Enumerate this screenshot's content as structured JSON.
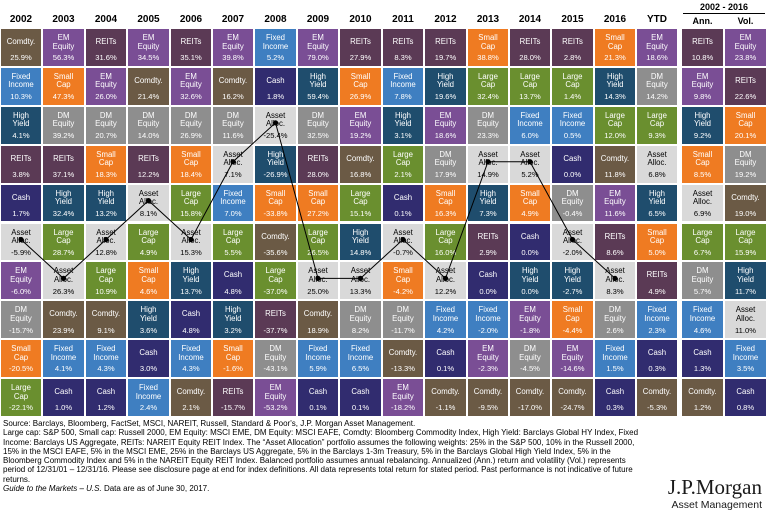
{
  "headers": {
    "years": [
      "2002",
      "2003",
      "2004",
      "2005",
      "2006",
      "2007",
      "2008",
      "2009",
      "2010",
      "2011",
      "2012",
      "2013",
      "2014",
      "2015",
      "2016",
      "YTD"
    ],
    "range_label": "2002 - 2016",
    "ann_label": "Ann.",
    "vol_label": "Vol."
  },
  "colors": {
    "REITs": "#5b3a55",
    "Comdty.": "#6b5a45",
    "EM Equity": "#7a4e95",
    "Fixed Income": "#3f7fc1",
    "Small Cap": "#ef7b22",
    "DM Equity": "#8e8e8e",
    "High Yield": "#1f4d6d",
    "Large Cap": "#6a8f2f",
    "Asset Alloc.": "#d9d9d9",
    "Cash": "#312c6f"
  },
  "chart_data": {
    "type": "table",
    "columns": [
      "2002",
      "2003",
      "2004",
      "2005",
      "2006",
      "2007",
      "2008",
      "2009",
      "2010",
      "2011",
      "2012",
      "2013",
      "2014",
      "2015",
      "2016",
      "YTD",
      "Ann.",
      "Vol."
    ],
    "rows": [
      [
        [
          "Comdty.",
          "25.9%"
        ],
        [
          "EM Equity",
          "56.3%"
        ],
        [
          "REITs",
          "31.6%"
        ],
        [
          "EM Equity",
          "34.5%"
        ],
        [
          "REITs",
          "35.1%"
        ],
        [
          "EM Equity",
          "39.8%"
        ],
        [
          "Fixed Income",
          "5.2%"
        ],
        [
          "EM Equity",
          "79.0%"
        ],
        [
          "REITs",
          "27.9%"
        ],
        [
          "REITs",
          "8.3%"
        ],
        [
          "REITs",
          "19.7%"
        ],
        [
          "Small Cap",
          "38.8%"
        ],
        [
          "REITs",
          "28.0%"
        ],
        [
          "REITs",
          "2.8%"
        ],
        [
          "Small Cap",
          "21.3%"
        ],
        [
          "EM Equity",
          "18.6%"
        ],
        [
          "REITs",
          "10.8%"
        ],
        [
          "EM Equity",
          "23.8%"
        ]
      ],
      [
        [
          "Fixed Income",
          "10.3%"
        ],
        [
          "Small Cap",
          "47.3%"
        ],
        [
          "EM Equity",
          "26.0%"
        ],
        [
          "Comdty.",
          "21.4%"
        ],
        [
          "EM Equity",
          "32.6%"
        ],
        [
          "Comdty.",
          "16.2%"
        ],
        [
          "Cash",
          "1.8%"
        ],
        [
          "High Yield",
          "59.4%"
        ],
        [
          "Small Cap",
          "26.9%"
        ],
        [
          "Fixed Income",
          "7.8%"
        ],
        [
          "High Yield",
          "19.6%"
        ],
        [
          "Large Cap",
          "32.4%"
        ],
        [
          "Large Cap",
          "13.7%"
        ],
        [
          "Large Cap",
          "1.4%"
        ],
        [
          "High Yield",
          "14.3%"
        ],
        [
          "DM Equity",
          "14.2%"
        ],
        [
          "EM Equity",
          "9.8%"
        ],
        [
          "REITs",
          "22.6%"
        ]
      ],
      [
        [
          "High Yield",
          "4.1%"
        ],
        [
          "DM Equity",
          "39.2%"
        ],
        [
          "DM Equity",
          "20.7%"
        ],
        [
          "DM Equity",
          "14.0%"
        ],
        [
          "DM Equity",
          "26.9%"
        ],
        [
          "DM Equity",
          "11.6%"
        ],
        [
          "Asset Alloc.",
          "-25.4%"
        ],
        [
          "DM Equity",
          "32.5%"
        ],
        [
          "EM Equity",
          "19.2%"
        ],
        [
          "High Yield",
          "3.1%"
        ],
        [
          "EM Equity",
          "18.6%"
        ],
        [
          "DM Equity",
          "23.3%"
        ],
        [
          "Fixed Income",
          "6.0%"
        ],
        [
          "Fixed Income",
          "0.5%"
        ],
        [
          "Large Cap",
          "12.0%"
        ],
        [
          "Large Cap",
          "9.3%"
        ],
        [
          "High Yield",
          "9.2%"
        ],
        [
          "Small Cap",
          "20.1%"
        ]
      ],
      [
        [
          "REITs",
          "3.8%"
        ],
        [
          "REITs",
          "37.1%"
        ],
        [
          "Small Cap",
          "18.3%"
        ],
        [
          "REITs",
          "12.2%"
        ],
        [
          "Small Cap",
          "18.4%"
        ],
        [
          "Asset Alloc.",
          "7.1%"
        ],
        [
          "High Yield",
          "-26.9%"
        ],
        [
          "REITs",
          "28.0%"
        ],
        [
          "Comdty.",
          "16.8%"
        ],
        [
          "Large Cap",
          "2.1%"
        ],
        [
          "DM Equity",
          "17.9%"
        ],
        [
          "Asset Alloc.",
          "14.9%"
        ],
        [
          "Asset Alloc.",
          "5.2%"
        ],
        [
          "Cash",
          "0.0%"
        ],
        [
          "Comdty.",
          "11.8%"
        ],
        [
          "Asset Alloc.",
          "6.8%"
        ],
        [
          "Small Cap",
          "8.5%"
        ],
        [
          "DM Equity",
          "19.2%"
        ]
      ],
      [
        [
          "Cash",
          "1.7%"
        ],
        [
          "High Yield",
          "32.4%"
        ],
        [
          "High Yield",
          "13.2%"
        ],
        [
          "Asset Alloc.",
          "8.1%"
        ],
        [
          "Large Cap",
          "15.8%"
        ],
        [
          "Fixed Income",
          "7.0%"
        ],
        [
          "Small Cap",
          "-33.8%"
        ],
        [
          "Small Cap",
          "27.2%"
        ],
        [
          "Large Cap",
          "15.1%"
        ],
        [
          "Cash",
          "0.1%"
        ],
        [
          "Small Cap",
          "16.3%"
        ],
        [
          "High Yield",
          "7.3%"
        ],
        [
          "Small Cap",
          "4.9%"
        ],
        [
          "DM Equity",
          "-0.4%"
        ],
        [
          "EM Equity",
          "11.6%"
        ],
        [
          "High Yield",
          "6.5%"
        ],
        [
          "Asset Alloc.",
          "6.9%"
        ],
        [
          "Comdty.",
          "19.0%"
        ]
      ],
      [
        [
          "Asset Alloc.",
          "-5.9%"
        ],
        [
          "Large Cap",
          "28.7%"
        ],
        [
          "Asset Alloc.",
          "12.8%"
        ],
        [
          "Large Cap",
          "4.9%"
        ],
        [
          "Asset Alloc.",
          "15.3%"
        ],
        [
          "Large Cap",
          "5.5%"
        ],
        [
          "Comdty.",
          "-35.6%"
        ],
        [
          "Large Cap",
          "26.5%"
        ],
        [
          "High Yield",
          "14.8%"
        ],
        [
          "Asset Alloc.",
          "-0.7%"
        ],
        [
          "Large Cap",
          "16.0%"
        ],
        [
          "REITs",
          "2.9%"
        ],
        [
          "Cash",
          "0.0%"
        ],
        [
          "Asset Alloc.",
          "-2.0%"
        ],
        [
          "REITs",
          "8.6%"
        ],
        [
          "Small Cap",
          "5.0%"
        ],
        [
          "Large Cap",
          "6.7%"
        ],
        [
          "Large Cap",
          "15.9%"
        ]
      ],
      [
        [
          "EM Equity",
          "-6.0%"
        ],
        [
          "Asset Alloc.",
          "26.3%"
        ],
        [
          "Large Cap",
          "10.9%"
        ],
        [
          "Small Cap",
          "4.6%"
        ],
        [
          "High Yield",
          "13.7%"
        ],
        [
          "Cash",
          "4.8%"
        ],
        [
          "Large Cap",
          "-37.0%"
        ],
        [
          "Asset Alloc.",
          "25.0%"
        ],
        [
          "Asset Alloc.",
          "13.3%"
        ],
        [
          "Small Cap",
          "-4.2%"
        ],
        [
          "Asset Alloc.",
          "12.2%"
        ],
        [
          "Cash",
          "0.0%"
        ],
        [
          "High Yield",
          "0.0%"
        ],
        [
          "High Yield",
          "-2.7%"
        ],
        [
          "Asset Alloc.",
          "8.3%"
        ],
        [
          "REITs",
          "4.9%"
        ],
        [
          "DM Equity",
          "5.7%"
        ],
        [
          "High Yield",
          "11.7%"
        ]
      ],
      [
        [
          "DM Equity",
          "-15.7%"
        ],
        [
          "Comdty.",
          "23.9%"
        ],
        [
          "Comdty.",
          "9.1%"
        ],
        [
          "High Yield",
          "3.6%"
        ],
        [
          "Cash",
          "4.8%"
        ],
        [
          "High Yield",
          "3.2%"
        ],
        [
          "REITs",
          "-37.7%"
        ],
        [
          "Comdty.",
          "18.9%"
        ],
        [
          "DM Equity",
          "8.2%"
        ],
        [
          "DM Equity",
          "-11.7%"
        ],
        [
          "Fixed Income",
          "4.2%"
        ],
        [
          "Fixed Income",
          "-2.0%"
        ],
        [
          "EM Equity",
          "-1.8%"
        ],
        [
          "Small Cap",
          "-4.4%"
        ],
        [
          "DM Equity",
          "2.6%"
        ],
        [
          "Fixed Income",
          "2.3%"
        ],
        [
          "Fixed Income",
          "4.6%"
        ],
        [
          "Asset Alloc.",
          "11.0%"
        ]
      ],
      [
        [
          "Small Cap",
          "-20.5%"
        ],
        [
          "Fixed Income",
          "4.1%"
        ],
        [
          "Fixed Income",
          "4.3%"
        ],
        [
          "Cash",
          "3.0%"
        ],
        [
          "Fixed Income",
          "4.3%"
        ],
        [
          "Small Cap",
          "-1.6%"
        ],
        [
          "DM Equity",
          "-43.1%"
        ],
        [
          "Fixed Income",
          "5.9%"
        ],
        [
          "Fixed Income",
          "6.5%"
        ],
        [
          "Comdty.",
          "-13.3%"
        ],
        [
          "Cash",
          "0.1%"
        ],
        [
          "EM Equity",
          "-2.3%"
        ],
        [
          "DM Equity",
          "-4.5%"
        ],
        [
          "EM Equity",
          "-14.6%"
        ],
        [
          "Fixed Income",
          "1.5%"
        ],
        [
          "Cash",
          "0.3%"
        ],
        [
          "Cash",
          "1.3%"
        ],
        [
          "Fixed Income",
          "3.5%"
        ]
      ],
      [
        [
          "Large Cap",
          "-22.1%"
        ],
        [
          "Cash",
          "1.0%"
        ],
        [
          "Cash",
          "1.2%"
        ],
        [
          "Fixed Income",
          "2.4%"
        ],
        [
          "Comdty.",
          "2.1%"
        ],
        [
          "REITs",
          "-15.7%"
        ],
        [
          "EM Equity",
          "-53.2%"
        ],
        [
          "Cash",
          "0.1%"
        ],
        [
          "Cash",
          "0.1%"
        ],
        [
          "EM Equity",
          "-18.2%"
        ],
        [
          "Comdty.",
          "-1.1%"
        ],
        [
          "Comdty.",
          "-9.5%"
        ],
        [
          "Comdty.",
          "-17.0%"
        ],
        [
          "Comdty.",
          "-24.7%"
        ],
        [
          "Cash",
          "0.3%"
        ],
        [
          "Comdty.",
          "-5.3%"
        ],
        [
          "Comdty.",
          "1.2%"
        ],
        [
          "Cash",
          "0.8%"
        ]
      ]
    ],
    "asset_alloc_line_rows": [
      5,
      6,
      5,
      4,
      5,
      3,
      2,
      6,
      6,
      5,
      6,
      3,
      3,
      5,
      6
    ]
  },
  "footer": {
    "lines": [
      "Source: Barclays, Bloomberg, FactSet, MSCI, NAREIT, Russell, Standard & Poor's, J.P. Morgan Asset Management.",
      "Large cap: S&P 500, Small cap: Russell 2000, EM Equity: MSCI EME, DM Equity: MSCI EAFE, Comdty: Bloomberg Commodity Index, High Yield: Barclays Global HY Index, Fixed Income: Barclays US Aggregate, REITs: NAREIT Equity REIT Index. The “Asset Allocation” portfolio assumes the following weights: 25% in the S&P 500, 10% in the Russell 2000, 15% in the MSCI EAFE, 5% in the MSCI EME, 25% in the Barclays US Aggregate, 5% in the Barclays 1-3m Treasury, 5% in the Barclays Global High Yield Index, 5% in the Bloomberg Commodity Index and 5% in the NAREIT Equity REIT Index. Balanced portfolio assumes annual rebalancing. Annualized (Ann.) return and volatility (Vol.) represents period of 12/31/01 – 12/31/16. Please see disclosure page at end for index definitions. All data represents total return for stated period. Past performance is not indicative of future returns."
    ],
    "guide_title": "Guide to the Markets – U.S.",
    "guide_rest": " Data are as of June 30, 2017."
  },
  "logo": {
    "brand": "J.P.Morgan",
    "sub": "Asset Management"
  }
}
